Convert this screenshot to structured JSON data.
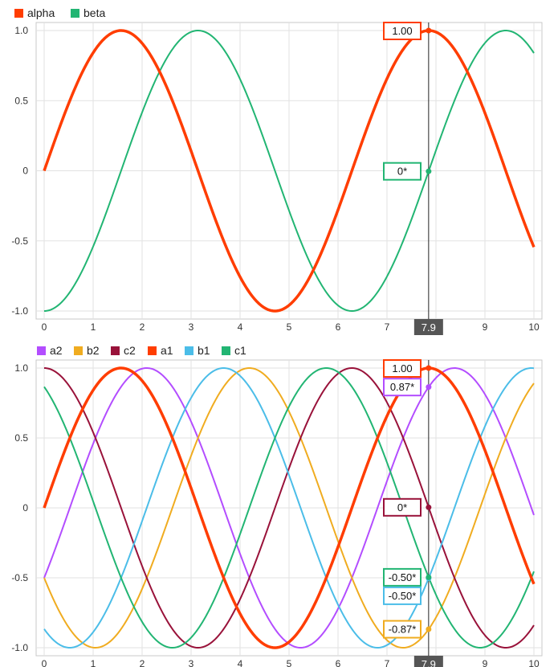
{
  "chart_data": [
    {
      "type": "line",
      "x_domain": [
        0,
        10
      ],
      "ylim": [
        -1,
        1
      ],
      "x_ticks": [
        "0",
        "1",
        "2",
        "3",
        "4",
        "5",
        "6",
        "7",
        "8",
        "9",
        "10"
      ],
      "y_ticks": [
        "-1.0",
        "-0.5",
        "0",
        "0.5",
        "1.0"
      ],
      "grid": true,
      "legend_position": "top-left",
      "cursor_x_label": "7.9",
      "series": [
        {
          "name": "alpha",
          "color": "#ff3d00",
          "function": "sin",
          "phase": 0,
          "emphasis": true,
          "value_at_cursor": "1.00"
        },
        {
          "name": "beta",
          "color": "#22b573",
          "function": "-cos",
          "phase": 0,
          "emphasis": false,
          "value_at_cursor": "0*"
        }
      ]
    },
    {
      "type": "line",
      "x_domain": [
        0,
        10
      ],
      "ylim": [
        -1,
        1
      ],
      "x_ticks": [
        "0",
        "1",
        "2",
        "3",
        "4",
        "5",
        "6",
        "7",
        "8",
        "9",
        "10"
      ],
      "y_ticks": [
        "-1.0",
        "-0.5",
        "0",
        "0.5",
        "1.0"
      ],
      "grid": true,
      "legend_position": "top-left",
      "cursor_x_label": "7.9",
      "series": [
        {
          "name": "a2",
          "color": "#b34dff",
          "function": "sin",
          "phase": -0.5236,
          "emphasis": false,
          "value_at_cursor": "0.87*"
        },
        {
          "name": "b2",
          "color": "#f0ac20",
          "function": "sin",
          "phase": -2.618,
          "emphasis": false,
          "value_at_cursor": "-0.87*"
        },
        {
          "name": "c2",
          "color": "#99123a",
          "function": "sin",
          "phase": 1.5708,
          "emphasis": false,
          "value_at_cursor": "0*"
        },
        {
          "name": "a1",
          "color": "#ff3d00",
          "function": "sin",
          "phase": 0,
          "emphasis": true,
          "value_at_cursor": "1.00"
        },
        {
          "name": "b1",
          "color": "#4bbde8",
          "function": "sin",
          "phase": -2.0944,
          "emphasis": false,
          "value_at_cursor": "-0.50*"
        },
        {
          "name": "c1",
          "color": "#22b573",
          "function": "sin",
          "phase": 2.0944,
          "emphasis": false,
          "value_at_cursor": "-0.50*"
        }
      ]
    }
  ]
}
